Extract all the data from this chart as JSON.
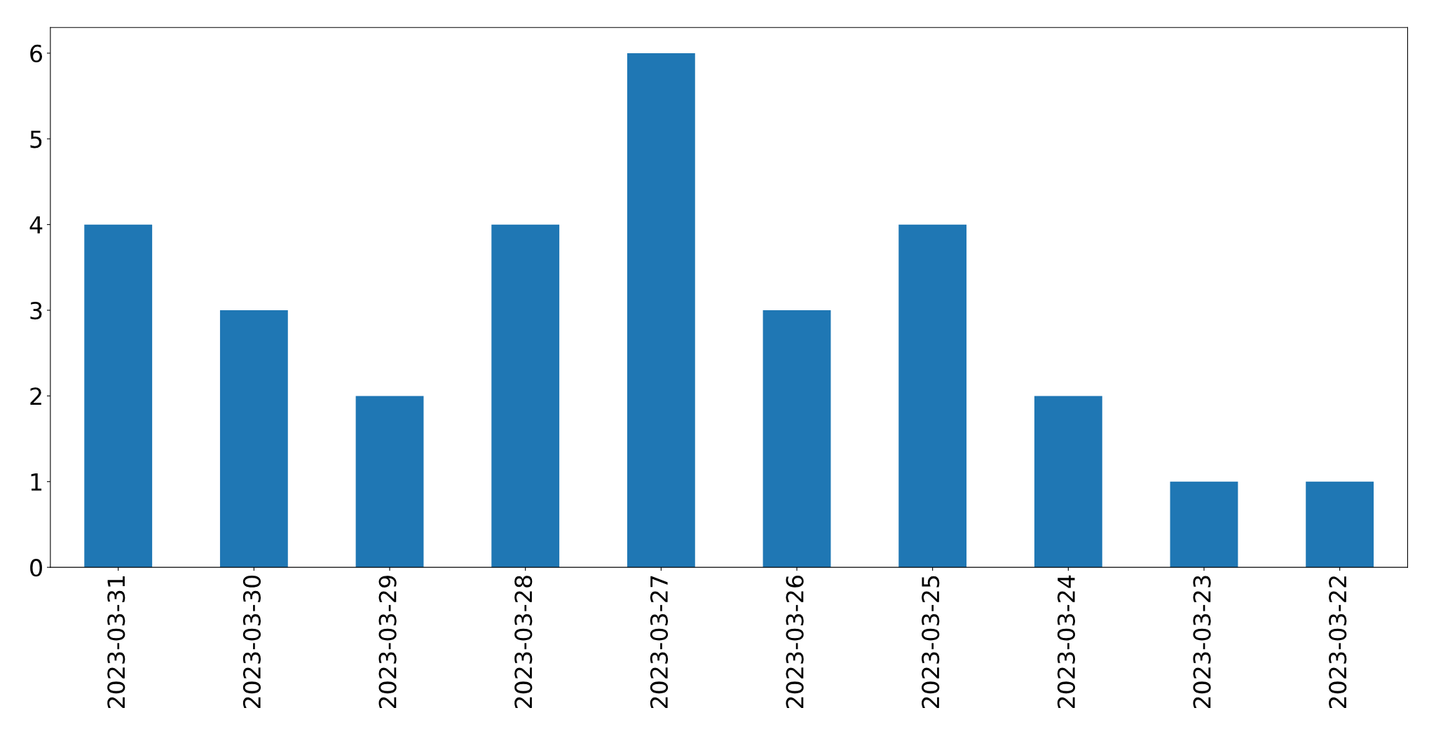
{
  "chart_data": {
    "type": "bar",
    "categories": [
      "2023-03-31",
      "2023-03-30",
      "2023-03-29",
      "2023-03-28",
      "2023-03-27",
      "2023-03-26",
      "2023-03-25",
      "2023-03-24",
      "2023-03-23",
      "2023-03-22"
    ],
    "values": [
      4,
      3,
      2,
      4,
      6,
      3,
      4,
      2,
      1,
      1
    ],
    "color": "#1f77b4",
    "ylim": [
      0,
      6.3
    ],
    "yticks": [
      0,
      1,
      2,
      3,
      4,
      5,
      6
    ],
    "grid": false
  }
}
